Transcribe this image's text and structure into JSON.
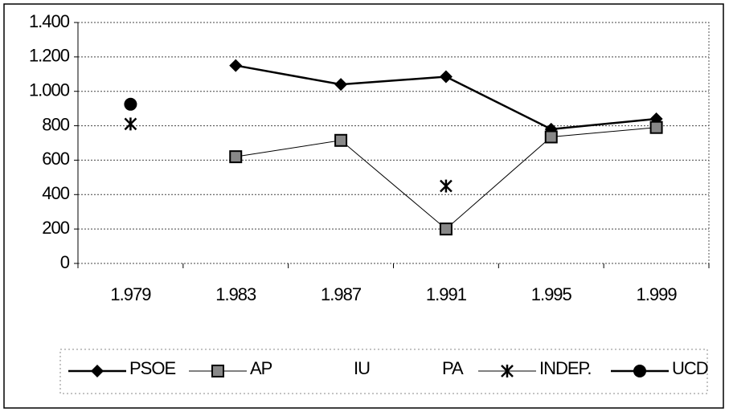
{
  "chart_data": {
    "type": "line",
    "categories": [
      "1.979",
      "1.983",
      "1.987",
      "1.991",
      "1.995",
      "1.999"
    ],
    "series": [
      {
        "name": "PSOE",
        "color": "#000000",
        "marker": "diamond",
        "line_width": 2.5,
        "values": [
          null,
          1150,
          1040,
          1085,
          780,
          840
        ]
      },
      {
        "name": "AP",
        "color": "#000000",
        "marker": "square",
        "line_width": 1,
        "values": [
          null,
          620,
          715,
          200,
          735,
          790
        ]
      },
      {
        "name": "IU",
        "color": "#ffffff",
        "marker": "none",
        "line_width": 1,
        "values": [
          null,
          null,
          null,
          null,
          null,
          null
        ]
      },
      {
        "name": "PA",
        "color": "#ffffff",
        "marker": "none",
        "line_width": 1,
        "values": [
          null,
          null,
          null,
          null,
          null,
          null
        ]
      },
      {
        "name": "INDEP.",
        "color": "#000000",
        "marker": "asterisk",
        "line_width": 1,
        "values": [
          810,
          null,
          null,
          450,
          null,
          null
        ]
      },
      {
        "name": "UCD",
        "color": "#000000",
        "marker": "circle",
        "line_width": 2.5,
        "values": [
          925,
          null,
          null,
          null,
          null,
          null
        ]
      }
    ],
    "ylim": [
      0,
      1400
    ],
    "yticks": [
      0,
      200,
      400,
      600,
      800,
      {
        "value": 1000,
        "label": "1.000"
      },
      {
        "value": 1200,
        "label": "1.200"
      },
      {
        "value": 1400,
        "label": "1.400"
      }
    ],
    "grid": true,
    "legend": "bottom"
  }
}
